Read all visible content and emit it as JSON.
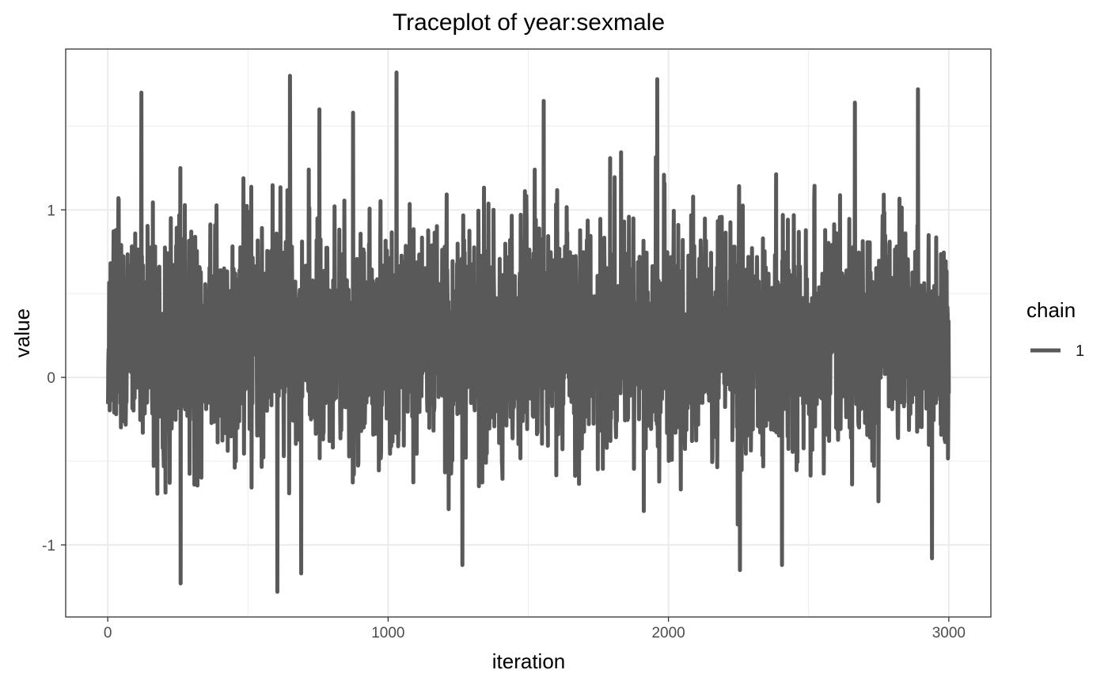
{
  "chart_data": {
    "type": "line",
    "title": "Traceplot of  year:sexmale",
    "xlabel": "iteration",
    "ylabel": "value",
    "xlim": [
      -150,
      3150
    ],
    "ylim": [
      -1.43,
      1.96
    ],
    "x_major_ticks": [
      0,
      1000,
      2000,
      3000
    ],
    "x_tick_labels": [
      "0",
      "1000",
      "2000",
      "3000"
    ],
    "x_minor_ticks": [
      500,
      1500,
      2500
    ],
    "y_major_ticks": [
      -1,
      0,
      1
    ],
    "y_tick_labels": [
      "-1",
      "0",
      "1"
    ],
    "y_minor_ticks": [
      -0.5,
      0.5,
      1.5
    ],
    "grid": true,
    "legend": {
      "title": "chain",
      "position": "right",
      "entries": [
        "1"
      ]
    },
    "series": [
      {
        "name": "1",
        "color": "#595959",
        "n_iterations": 3000,
        "approx_center": 0.22,
        "approx_sd": 0.35,
        "notable_values": [
          {
            "x": 120,
            "y": 1.7
          },
          {
            "x": 260,
            "y": -1.23
          },
          {
            "x": 605,
            "y": -1.28
          },
          {
            "x": 650,
            "y": 1.8
          },
          {
            "x": 690,
            "y": -1.17
          },
          {
            "x": 755,
            "y": 1.6
          },
          {
            "x": 875,
            "y": 1.58
          },
          {
            "x": 1030,
            "y": 1.82
          },
          {
            "x": 1265,
            "y": -1.12
          },
          {
            "x": 1555,
            "y": 1.65
          },
          {
            "x": 1960,
            "y": 1.78
          },
          {
            "x": 2255,
            "y": -1.15
          },
          {
            "x": 2405,
            "y": -1.12
          },
          {
            "x": 2665,
            "y": 1.64
          },
          {
            "x": 2890,
            "y": 1.72
          },
          {
            "x": 2940,
            "y": -1.08
          }
        ]
      }
    ]
  }
}
